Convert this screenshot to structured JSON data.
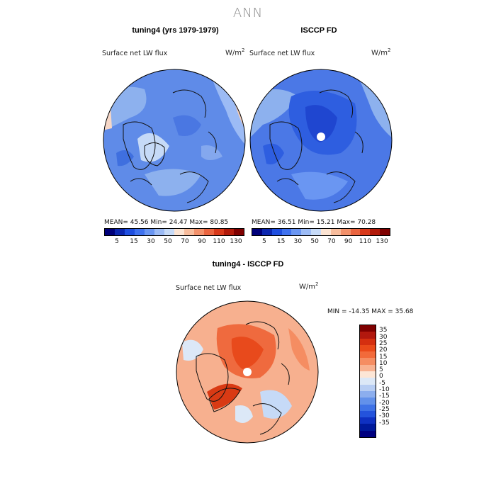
{
  "figure": {
    "title": "ANN"
  },
  "panel_left": {
    "title": "tuning4 (yrs 1979-1979)",
    "variable": "Surface net LW flux",
    "units": "W/m",
    "units_exp": "2",
    "stats": "MEAN=   45.56   Min=   24.47   Max=   80.85"
  },
  "panel_right": {
    "title": "ISCCP FD",
    "variable": "Surface net LW flux",
    "units": "W/m",
    "units_exp": "2",
    "stats": "MEAN=   36.51   Min=   15.21   Max=   70.28"
  },
  "abs_colorbar": {
    "colors": [
      "#00007a",
      "#0c27b0",
      "#1f4fe0",
      "#3f72ef",
      "#6a96f2",
      "#9cbbf5",
      "#c6daf7",
      "#fbe3d2",
      "#f7bc9c",
      "#f2916b",
      "#ea6540",
      "#d8391a",
      "#b21a0a",
      "#7f0000"
    ],
    "labels": [
      "5",
      "15",
      "30",
      "50",
      "70",
      "90",
      "110",
      "130"
    ]
  },
  "panel_diff": {
    "title": "tuning4 - ISCCP FD",
    "variable": "Surface net LW flux",
    "units": "W/m",
    "units_exp": "2",
    "minmax": "MIN = -14.35  MAX =  35.68"
  },
  "diff_colorbar": {
    "colors": [
      "#7f0000",
      "#b2180e",
      "#d52f10",
      "#ea4a1a",
      "#f26a3a",
      "#f58d62",
      "#f8b291",
      "#fde6d6",
      "#dce8f7",
      "#b7cdf3",
      "#8caeee",
      "#6391ea",
      "#3f72e6",
      "#2453dc",
      "#0f31c2",
      "#001a9c",
      "#000080"
    ],
    "labels": [
      "35",
      "30",
      "25",
      "20",
      "15",
      "10",
      "5",
      "0",
      "-5",
      "-10",
      "-15",
      "-20",
      "-25",
      "-30",
      "-35"
    ]
  },
  "maps": {
    "left_base": "#5f8be8",
    "right_base": "#4b78e6",
    "diff_base": "#f7b08f"
  }
}
